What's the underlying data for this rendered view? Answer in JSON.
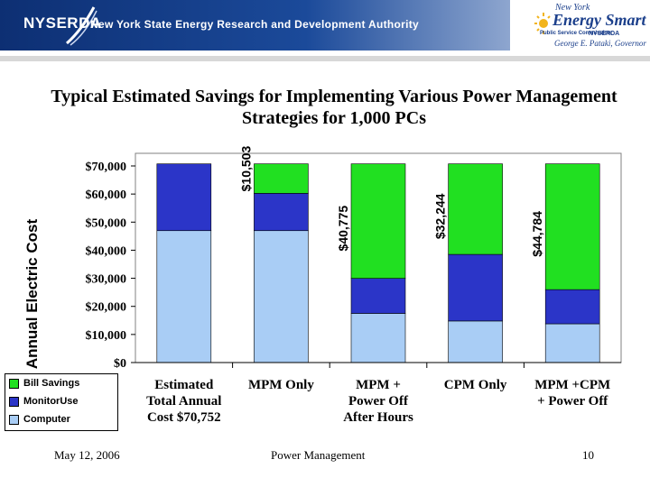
{
  "banner": {
    "org": "NYSERDA",
    "authority": "New York State Energy Research and Development Authority"
  },
  "energy_smart": {
    "state": "New York",
    "brand": "Energy Smart",
    "sub": "Public Service Commission",
    "org": "NYSERDA",
    "governor": "George E. Pataki, Governor"
  },
  "footer": {
    "date": "May 12, 2006",
    "topic": "Power Management",
    "page": "10"
  },
  "colors": {
    "bill_savings": "#21e021",
    "monitor_use": "#2b35c8",
    "computer": "#a9cdf5"
  },
  "chart_data": {
    "type": "bar",
    "stacked": true,
    "title": "Typical Estimated Savings for Implementing Various Power Management Strategies for 1,000 PCs",
    "ylabel": "Annual Electric Cost",
    "xlabel": "",
    "ylim": [
      0,
      70000
    ],
    "yticks": [
      "$0",
      "$10,000",
      "$20,000",
      "$30,000",
      "$40,000",
      "$50,000",
      "$60,000",
      "$70,000"
    ],
    "categories": [
      "Estimated Total Annual Cost $70,752",
      "MPM Only",
      "MPM + Power Off After Hours",
      "CPM Only",
      "MPM +CPM + Power Off"
    ],
    "category_lines": [
      [
        "Estimated",
        "Total Annual",
        "Cost $70,752"
      ],
      [
        "MPM Only"
      ],
      [
        "MPM +",
        "Power Off",
        "After Hours"
      ],
      [
        "CPM Only"
      ],
      [
        "MPM +CPM",
        "+ Power Off"
      ]
    ],
    "series": [
      {
        "name": "Computer",
        "values": [
          46968,
          46968,
          17500,
          14800,
          13800
        ]
      },
      {
        "name": "MonitorUse",
        "values": [
          23784,
          13281,
          12477,
          23708,
          12168
        ]
      },
      {
        "name": "Bill Savings",
        "values": [
          0,
          10503,
          40775,
          32244,
          44784
        ]
      }
    ],
    "savings_labels": [
      "",
      "$10,503",
      "$40,775",
      "$32,244",
      "$44,784"
    ],
    "legend": [
      "Bill Savings",
      "MonitorUse",
      "Computer"
    ],
    "grid": false
  }
}
